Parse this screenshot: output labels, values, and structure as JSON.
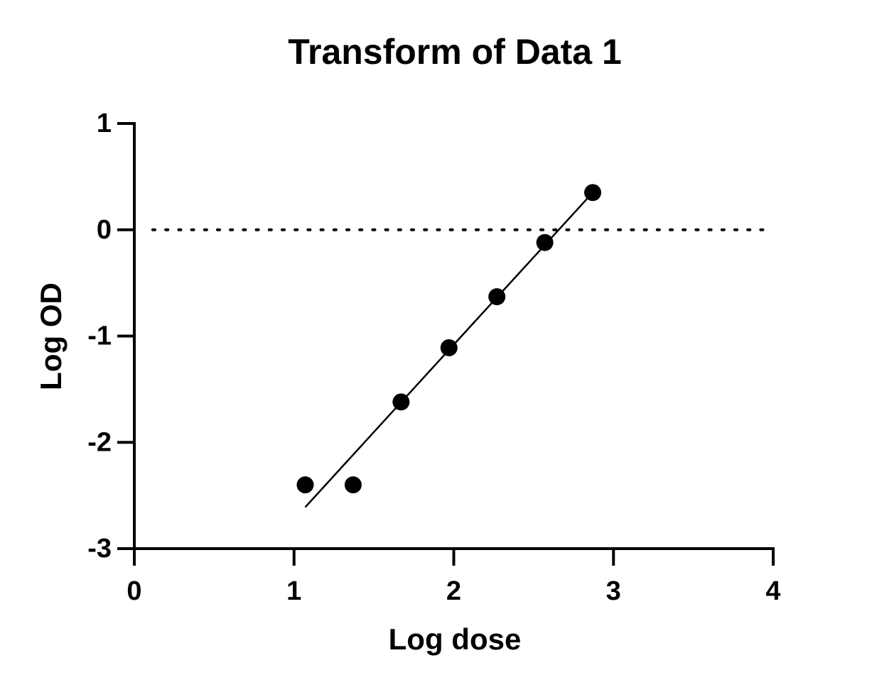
{
  "chart_data": {
    "type": "scatter",
    "title": "Transform of Data 1",
    "x_label": "Log dose",
    "y_label": "Log OD",
    "series": [
      {
        "color": "#000000",
        "x": [
          1.07,
          1.37,
          1.67,
          1.97,
          2.27,
          2.57,
          2.87
        ],
        "values": [
          -2.4,
          -2.4,
          -1.62,
          -1.11,
          -0.63,
          -0.12,
          0.35
        ]
      }
    ],
    "fit_line": {
      "color": "#000000",
      "x": [
        1.07,
        2.87
      ],
      "values": [
        -2.61,
        0.35
      ]
    },
    "reference_line": {
      "y": 0,
      "style": "dotted"
    },
    "xlim": [
      0,
      4
    ],
    "xticks": [
      0,
      1,
      2,
      3,
      4
    ],
    "ylim": [
      -3,
      1
    ],
    "yticks": [
      -3,
      -2,
      -1,
      0,
      1
    ]
  }
}
